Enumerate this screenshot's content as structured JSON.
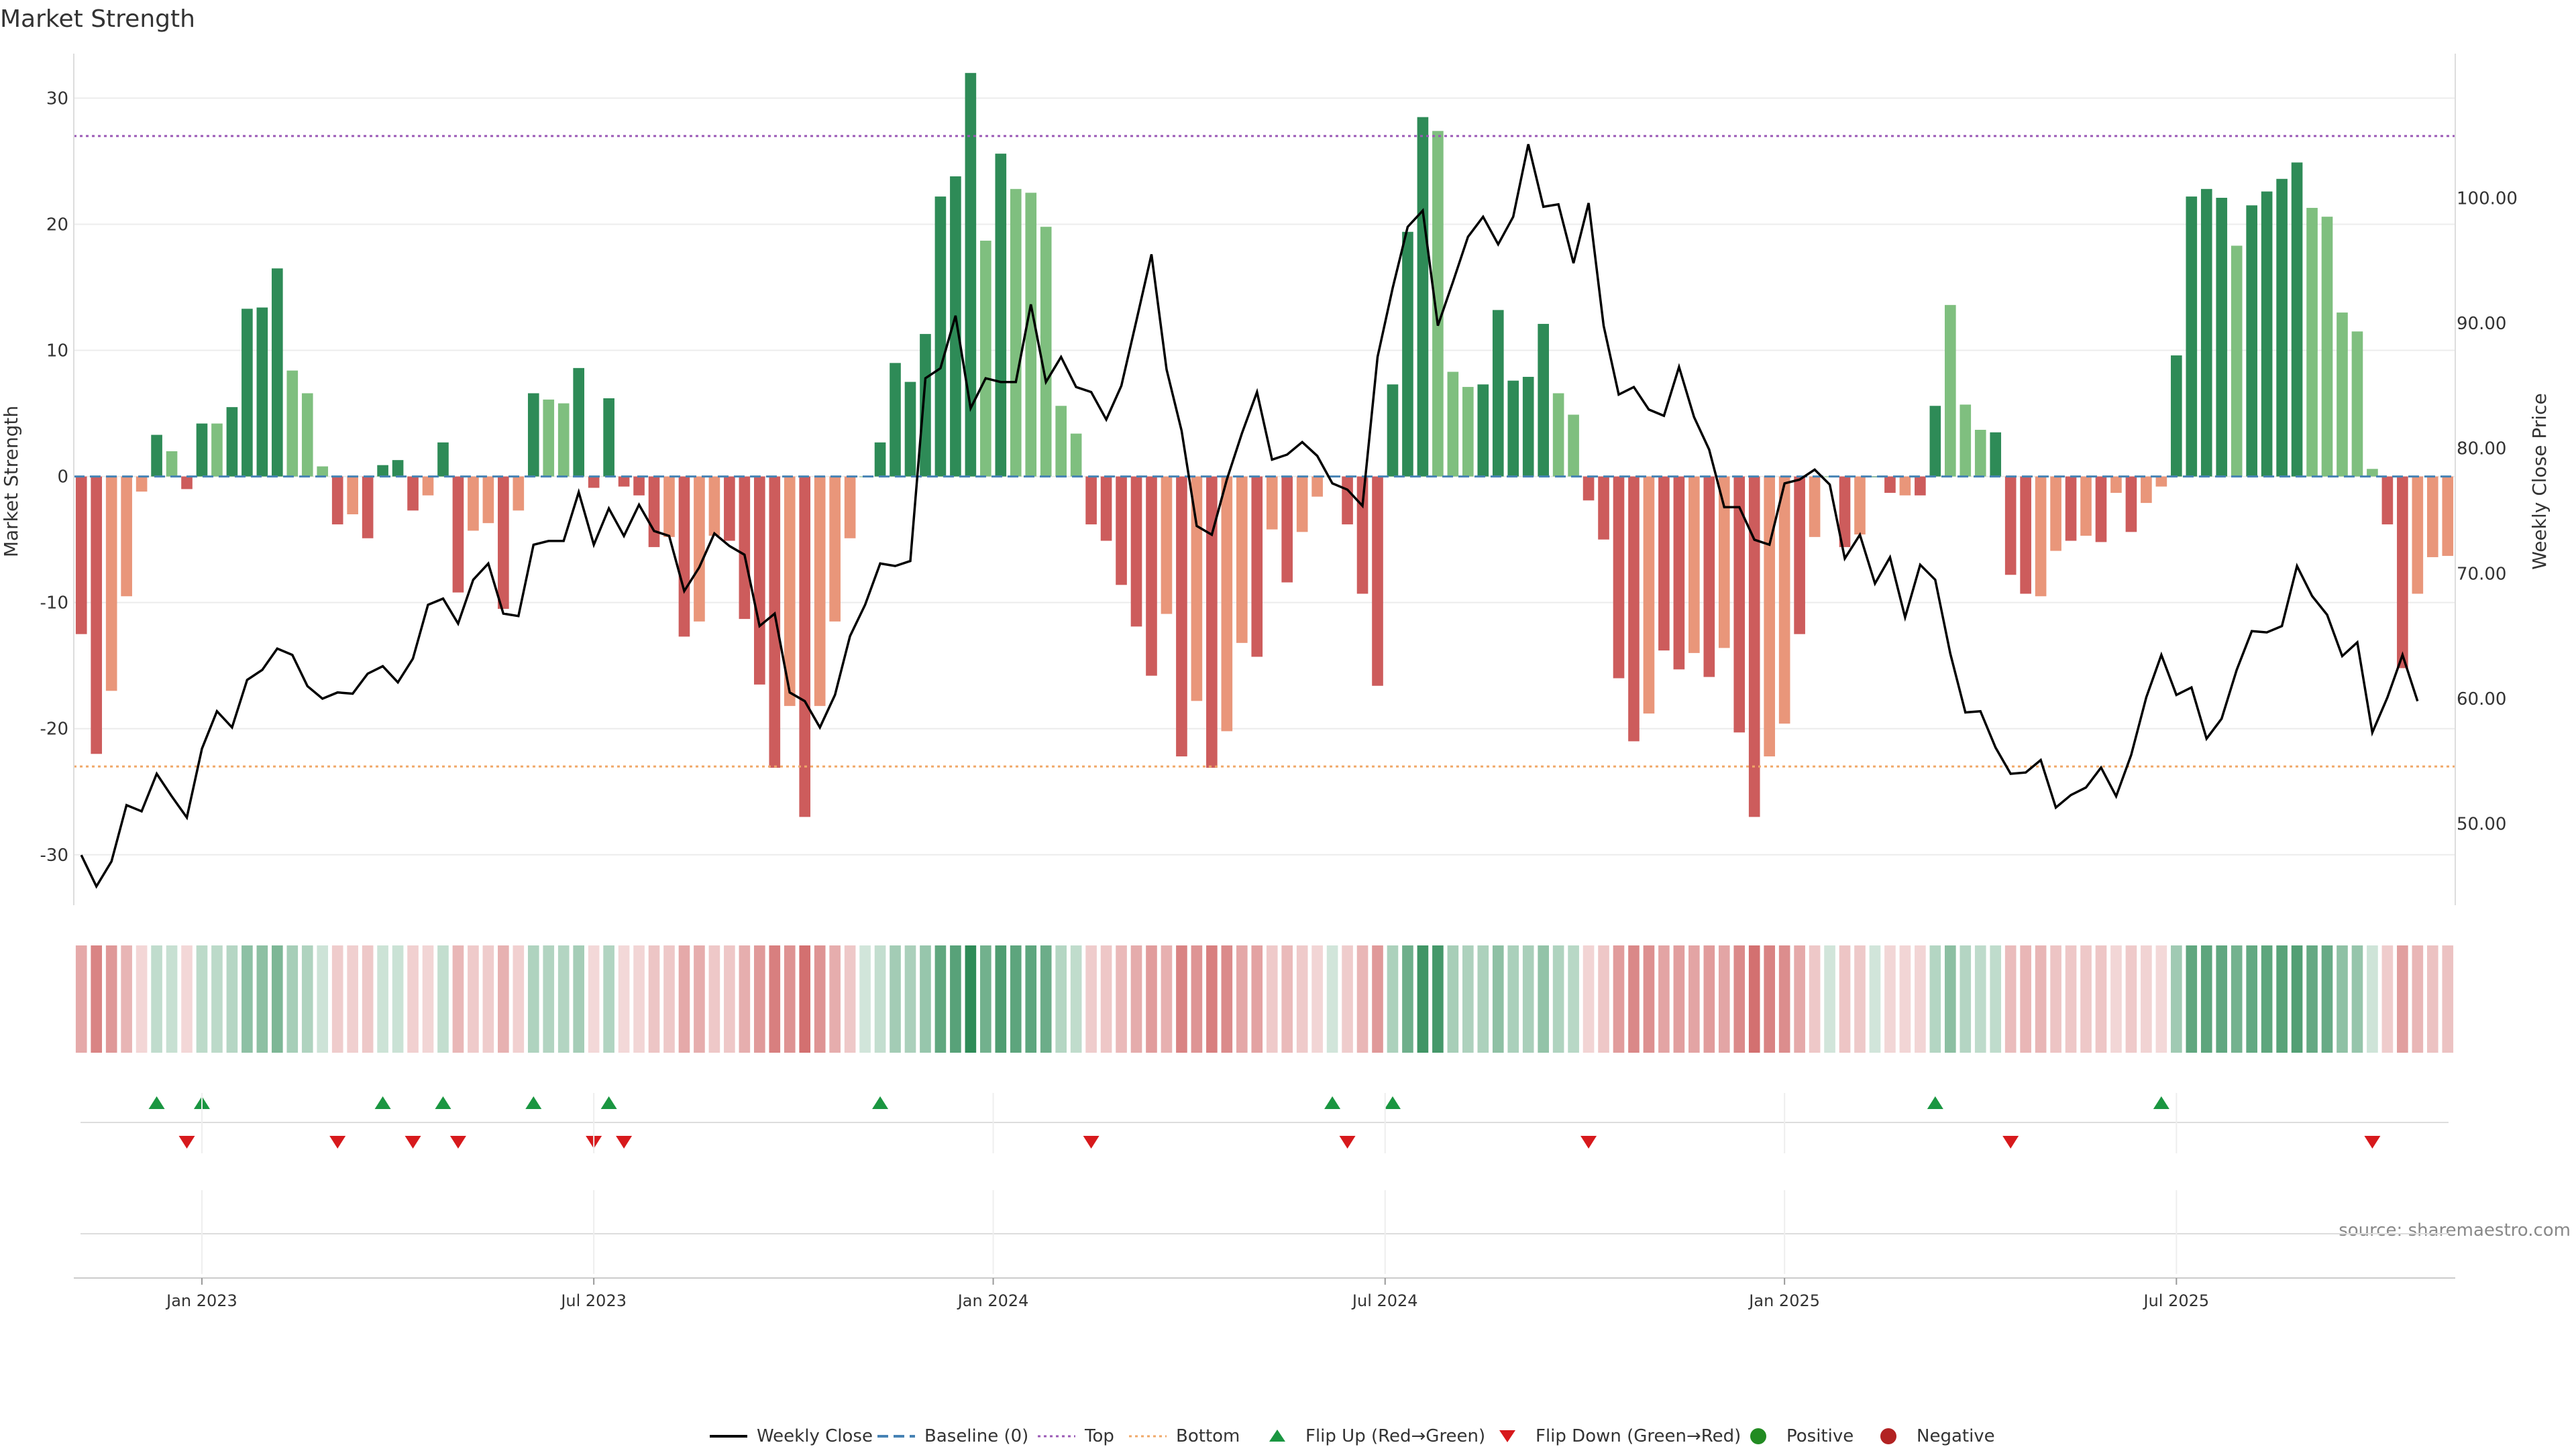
{
  "page": {
    "title": "Market Strength",
    "source_note": "source: sharemaestro.com"
  },
  "colors": {
    "green_strong": "#2e8b57",
    "green_light": "#7fbf7f",
    "red_strong": "#cd5c5c",
    "red_light": "#e9967a",
    "line": "#000000",
    "baseline": "#4682b4",
    "top": "#9b59b6",
    "bottom": "#f0a868",
    "flip_up": "#1a9641",
    "flip_down": "#d7191c",
    "positive": "#228b22",
    "negative": "#b22222",
    "grid": "#ececec"
  },
  "chart_data": {
    "type": "bar",
    "title": "Market Strength",
    "xlabel": "",
    "ylabel": "Market Strength",
    "y2label": "Weekly Close Price",
    "ylim": [
      -34,
      33
    ],
    "y2lim": [
      43.5,
      111
    ],
    "yticks": [
      30,
      20,
      10,
      0,
      -10,
      -20,
      -30
    ],
    "y2ticks": [
      "100.00",
      "90.00",
      "80.00",
      "70.00",
      "60.00",
      "50.00"
    ],
    "xticks": [
      {
        "label": "Jan 2023",
        "week": 8.5
      },
      {
        "label": "Jul 2023",
        "week": 34.5
      },
      {
        "label": "Jan 2024",
        "week": 61
      },
      {
        "label": "Jul 2024",
        "week": 87
      },
      {
        "label": "Jan 2025",
        "week": 113.5
      },
      {
        "label": "Jul 2025",
        "week": 139.5
      }
    ],
    "grid": true,
    "top_level": 27,
    "bottom_level": -23,
    "baseline": 0,
    "strength": [
      -12.5,
      -22,
      -17,
      -9.5,
      -1.2,
      3.3,
      2,
      -1,
      4.2,
      4.2,
      5.5,
      13.3,
      13.4,
      16.5,
      8.4,
      6.6,
      0.8,
      -3.8,
      -3,
      -4.9,
      0.9,
      1.3,
      -2.7,
      -1.5,
      2.7,
      -9.2,
      -4.3,
      -3.7,
      -10.5,
      -2.7,
      6.6,
      6.1,
      5.8,
      8.6,
      -0.9,
      6.2,
      -0.8,
      -1.5,
      -5.6,
      -4.8,
      -12.7,
      -11.5,
      -4.7,
      -5.1,
      -11.3,
      -16.5,
      -23.1,
      -18.2,
      -27,
      -18.2,
      -11.5,
      -4.9,
      0,
      2.7,
      9,
      7.5,
      11.3,
      22.2,
      23.8,
      32,
      18.7,
      25.6,
      22.8,
      22.5,
      19.8,
      5.6,
      3.4,
      -3.8,
      -5.1,
      -8.6,
      -11.9,
      -15.8,
      -10.9,
      -22.2,
      -17.8,
      -23.1,
      -20.2,
      -13.2,
      -14.3,
      -4.2,
      -8.4,
      -4.4,
      -1.6,
      0,
      -3.8,
      -9.3,
      -16.6,
      7.3,
      19.4,
      28.5,
      27.4,
      8.3,
      7.1,
      7.3,
      13.2,
      7.6,
      7.9,
      12.1,
      6.6,
      4.9,
      -1.9,
      -5,
      -16,
      -21,
      -18.8,
      -13.8,
      -15.3,
      -14,
      -15.9,
      -13.6,
      -20.3,
      -27,
      -22.2,
      -19.6,
      -12.5,
      -4.8,
      0,
      -5.6,
      -4.6,
      0,
      -1.3,
      -1.5,
      -1.5,
      5.6,
      13.6,
      5.7,
      3.7,
      3.5,
      -7.8,
      -9.3,
      -9.5,
      -5.9,
      -5.1,
      -4.7,
      -5.2,
      -1.3,
      -4.4,
      -2.1,
      -0.8,
      9.6,
      22.2,
      22.8,
      22.1,
      18.3,
      21.5,
      22.6,
      23.6,
      24.9,
      21.3,
      20.6,
      13,
      11.5,
      0.6,
      -3.8,
      -15.2,
      -9.3,
      -6.4,
      -6.3
    ],
    "strong_flags": [
      1,
      1,
      0,
      0,
      0,
      1,
      0,
      1,
      1,
      0,
      1,
      1,
      1,
      1,
      0,
      0,
      0,
      1,
      0,
      1,
      1,
      1,
      1,
      0,
      1,
      1,
      0,
      0,
      1,
      0,
      1,
      0,
      0,
      1,
      1,
      1,
      1,
      1,
      1,
      0,
      1,
      0,
      0,
      1,
      1,
      1,
      1,
      0,
      1,
      0,
      0,
      0,
      0,
      1,
      1,
      1,
      1,
      1,
      1,
      1,
      0,
      1,
      0,
      0,
      0,
      0,
      0,
      1,
      1,
      1,
      1,
      1,
      0,
      1,
      0,
      1,
      0,
      0,
      1,
      0,
      1,
      0,
      0,
      0,
      1,
      1,
      1,
      1,
      1,
      1,
      0,
      0,
      0,
      1,
      1,
      1,
      1,
      1,
      0,
      0,
      1,
      1,
      1,
      1,
      0,
      1,
      1,
      0,
      1,
      0,
      1,
      1,
      0,
      0,
      1,
      0,
      0,
      1,
      0,
      1,
      1,
      0,
      1,
      1,
      0,
      0,
      0,
      1,
      1,
      1,
      0,
      0,
      1,
      0,
      1,
      0,
      1,
      0,
      0,
      1,
      1,
      1,
      1,
      0,
      1,
      1,
      1,
      1,
      0,
      0,
      0,
      0,
      0,
      1,
      1,
      0,
      0,
      0
    ],
    "close": [
      47.5,
      45,
      47,
      51.5,
      51,
      54,
      52.2,
      50.5,
      56,
      59,
      57.7,
      61.5,
      62.3,
      64,
      63.5,
      61,
      60,
      60.5,
      60.4,
      62,
      62.6,
      61.3,
      63.2,
      67.5,
      68,
      66,
      69.5,
      70.8,
      66.8,
      66.6,
      72.3,
      72.6,
      72.6,
      76.5,
      72.3,
      75.2,
      73,
      75.5,
      73.4,
      73,
      68.6,
      70.5,
      73.2,
      72.2,
      71.5,
      65.8,
      66.8,
      60.5,
      59.8,
      57.7,
      60.3,
      65,
      67.5,
      70.8,
      70.6,
      71,
      85.6,
      86.4,
      90.6,
      83.2,
      85.6,
      85.3,
      85.3,
      91.5,
      85.3,
      87.3,
      84.9,
      84.5,
      82.3,
      85,
      90.2,
      95.5,
      86.3,
      81.4,
      73.8,
      73.1,
      77.5,
      81.2,
      84.5,
      79.1,
      79.5,
      80.5,
      79.4,
      77.2,
      76.7,
      75.4,
      87.3,
      92.8,
      97.7,
      99,
      89.8,
      93.3,
      96.9,
      98.5,
      96.3,
      98.5,
      104.3,
      99.3,
      99.5,
      94.8,
      99.6,
      89.8,
      84.3,
      84.9,
      83.1,
      82.6,
      86.5,
      82.5,
      79.9,
      75.3,
      75.3,
      72.7,
      72.3,
      77.2,
      77.5,
      78.3,
      77.1,
      71.2,
      73.1,
      69.2,
      71.3,
      66.5,
      70.7,
      69.5,
      63.6,
      58.9,
      59,
      56.1,
      54,
      54.1,
      55.1,
      51.3,
      52.3,
      52.9,
      54.5,
      52.2,
      55.5,
      60.1,
      63.5,
      60.3,
      60.9,
      56.8,
      58.4,
      62.3,
      65.4,
      65.3,
      65.8,
      70.6,
      68.2,
      66.7,
      63.4,
      64.5,
      57.3,
      60.1,
      63.5,
      59.8
    ],
    "flip_up_weeks": [
      5,
      8,
      20,
      24,
      30,
      35,
      53,
      83,
      87,
      123,
      138
    ],
    "flip_down_weeks": [
      7,
      17,
      22,
      25,
      34,
      36,
      67,
      84,
      100,
      128,
      152
    ],
    "legend": [
      {
        "label": "Weekly Close",
        "kind": "solid-line"
      },
      {
        "label": "Baseline (0)",
        "kind": "dashed-line"
      },
      {
        "label": "Top",
        "kind": "dotted-line"
      },
      {
        "label": "Bottom",
        "kind": "dotted-line"
      },
      {
        "label": "Flip Up (Red→Green)",
        "kind": "triangle-up"
      },
      {
        "label": "Flip Down (Green→Red)",
        "kind": "triangle-down"
      },
      {
        "label": "Positive",
        "kind": "dot"
      },
      {
        "label": "Negative",
        "kind": "dot"
      }
    ],
    "legend_position": "bottom-center"
  }
}
